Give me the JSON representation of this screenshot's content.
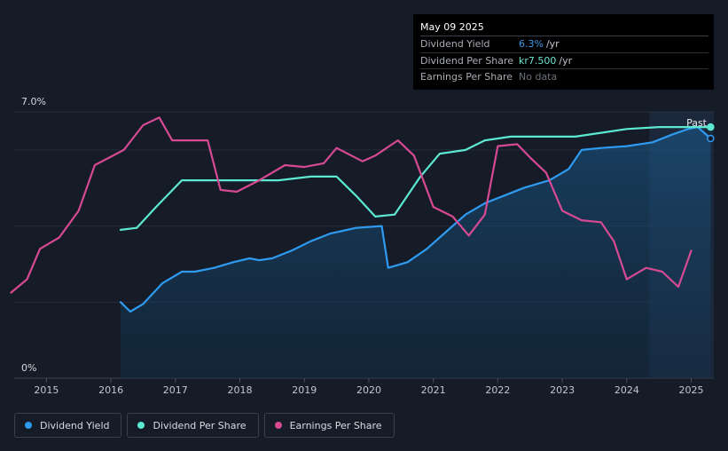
{
  "tooltip": {
    "date": "May 09 2025",
    "rows": [
      {
        "label": "Dividend Yield",
        "value": "6.3%",
        "unit": "/yr",
        "color": "#3d9ae8"
      },
      {
        "label": "Dividend Per Share",
        "value": "kr7.500",
        "unit": "/yr",
        "color": "#6ee3d0"
      },
      {
        "label": "Earnings Per Share",
        "value": "No data",
        "unit": "",
        "color": "#6c717a"
      }
    ]
  },
  "legend": [
    {
      "label": "Dividend Yield",
      "color": "#2f9bf0"
    },
    {
      "label": "Dividend Per Share",
      "color": "#5de8d2"
    },
    {
      "label": "Earnings Per Share",
      "color": "#d64a93"
    }
  ],
  "chart_data": {
    "type": "line",
    "y_top_label": "7.0%",
    "y_bottom_label": "0%",
    "ylim": [
      0,
      7.0
    ],
    "xlim": [
      2014.5,
      2025.35
    ],
    "x_ticks": [
      "2015",
      "2016",
      "2017",
      "2018",
      "2019",
      "2020",
      "2021",
      "2022",
      "2023",
      "2024",
      "2025"
    ],
    "past_label": "Past",
    "past_start": 2024.35,
    "grid": true,
    "series": [
      {
        "name": "Dividend Yield",
        "color": "#2f9bf0",
        "area": true,
        "points": [
          [
            2016.15,
            2.0
          ],
          [
            2016.3,
            1.75
          ],
          [
            2016.5,
            1.95
          ],
          [
            2016.8,
            2.5
          ],
          [
            2017.1,
            2.8
          ],
          [
            2017.3,
            2.8
          ],
          [
            2017.6,
            2.9
          ],
          [
            2017.9,
            3.05
          ],
          [
            2018.15,
            3.15
          ],
          [
            2018.3,
            3.1
          ],
          [
            2018.5,
            3.15
          ],
          [
            2018.8,
            3.35
          ],
          [
            2019.1,
            3.6
          ],
          [
            2019.4,
            3.8
          ],
          [
            2019.8,
            3.95
          ],
          [
            2020.2,
            4.0
          ],
          [
            2020.3,
            2.9
          ],
          [
            2020.6,
            3.05
          ],
          [
            2020.9,
            3.4
          ],
          [
            2021.2,
            3.85
          ],
          [
            2021.5,
            4.3
          ],
          [
            2021.8,
            4.6
          ],
          [
            2022.1,
            4.8
          ],
          [
            2022.4,
            5.0
          ],
          [
            2022.8,
            5.2
          ],
          [
            2023.1,
            5.5
          ],
          [
            2023.3,
            6.0
          ],
          [
            2023.6,
            6.05
          ],
          [
            2024.0,
            6.1
          ],
          [
            2024.4,
            6.2
          ],
          [
            2024.7,
            6.4
          ],
          [
            2024.95,
            6.55
          ],
          [
            2025.1,
            6.6
          ],
          [
            2025.3,
            6.3
          ]
        ]
      },
      {
        "name": "Dividend Per Share",
        "color": "#5de8d2",
        "area": false,
        "points": [
          [
            2016.15,
            3.9
          ],
          [
            2016.4,
            3.95
          ],
          [
            2016.7,
            4.5
          ],
          [
            2017.1,
            5.2
          ],
          [
            2017.5,
            5.2
          ],
          [
            2018.0,
            5.2
          ],
          [
            2018.6,
            5.2
          ],
          [
            2019.1,
            5.3
          ],
          [
            2019.5,
            5.3
          ],
          [
            2019.8,
            4.8
          ],
          [
            2020.1,
            4.25
          ],
          [
            2020.4,
            4.3
          ],
          [
            2020.8,
            5.3
          ],
          [
            2021.1,
            5.9
          ],
          [
            2021.5,
            6.0
          ],
          [
            2021.8,
            6.25
          ],
          [
            2022.2,
            6.35
          ],
          [
            2022.7,
            6.35
          ],
          [
            2023.2,
            6.35
          ],
          [
            2023.6,
            6.45
          ],
          [
            2024.0,
            6.55
          ],
          [
            2024.5,
            6.6
          ],
          [
            2025.3,
            6.6
          ]
        ]
      },
      {
        "name": "Earnings Per Share",
        "color": "#d64a93",
        "area": false,
        "points": [
          [
            2014.45,
            2.25
          ],
          [
            2014.7,
            2.6
          ],
          [
            2014.9,
            3.4
          ],
          [
            2015.2,
            3.7
          ],
          [
            2015.5,
            4.4
          ],
          [
            2015.75,
            5.6
          ],
          [
            2016.2,
            6.0
          ],
          [
            2016.5,
            6.65
          ],
          [
            2016.75,
            6.85
          ],
          [
            2016.95,
            6.25
          ],
          [
            2017.5,
            6.25
          ],
          [
            2017.7,
            4.95
          ],
          [
            2017.95,
            4.9
          ],
          [
            2018.3,
            5.2
          ],
          [
            2018.7,
            5.6
          ],
          [
            2019.0,
            5.55
          ],
          [
            2019.3,
            5.65
          ],
          [
            2019.5,
            6.05
          ],
          [
            2019.9,
            5.7
          ],
          [
            2020.1,
            5.85
          ],
          [
            2020.45,
            6.25
          ],
          [
            2020.7,
            5.85
          ],
          [
            2021.0,
            4.5
          ],
          [
            2021.3,
            4.25
          ],
          [
            2021.55,
            3.75
          ],
          [
            2021.8,
            4.3
          ],
          [
            2022.0,
            6.1
          ],
          [
            2022.3,
            6.15
          ],
          [
            2022.5,
            5.8
          ],
          [
            2022.75,
            5.4
          ],
          [
            2023.0,
            4.4
          ],
          [
            2023.3,
            4.15
          ],
          [
            2023.6,
            4.1
          ],
          [
            2023.8,
            3.6
          ],
          [
            2024.0,
            2.6
          ],
          [
            2024.3,
            2.9
          ],
          [
            2024.55,
            2.8
          ],
          [
            2024.8,
            2.4
          ],
          [
            2025.0,
            3.35
          ]
        ]
      }
    ]
  }
}
